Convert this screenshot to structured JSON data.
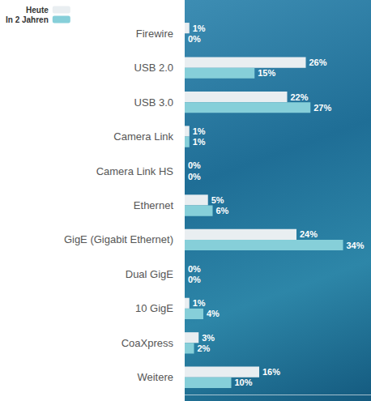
{
  "chart_data": {
    "type": "bar",
    "orientation": "horizontal",
    "categories": [
      "Firewire",
      "USB 2.0",
      "USB 3.0",
      "Camera Link",
      "Camera Link HS",
      "Ethernet",
      "GigE (Gigabit Ethernet)",
      "Dual GigE",
      "10 GigE",
      "CoaXpress",
      "Weitere"
    ],
    "series": [
      {
        "name": "Heute",
        "color": "#e9eef1",
        "values": [
          1,
          26,
          22,
          1,
          0,
          5,
          24,
          0,
          1,
          3,
          16
        ],
        "value_labels": [
          "1%",
          "26%",
          "22%",
          "1%",
          "0%",
          "5%",
          "24%",
          "0%",
          "1%",
          "3%",
          "16%"
        ]
      },
      {
        "name": "In 2 Jahren",
        "color": "#86cfd9",
        "values": [
          0,
          15,
          27,
          1,
          0,
          6,
          34,
          0,
          4,
          2,
          10
        ],
        "value_labels": [
          "0%",
          "15%",
          "27%",
          "1%",
          "0%",
          "6%",
          "34%",
          "0%",
          "4%",
          "2%",
          "10%"
        ]
      }
    ],
    "xlim": [
      0,
      40
    ],
    "data_labels": true,
    "tick_labels": false,
    "grid": false,
    "legend": "top-left"
  }
}
